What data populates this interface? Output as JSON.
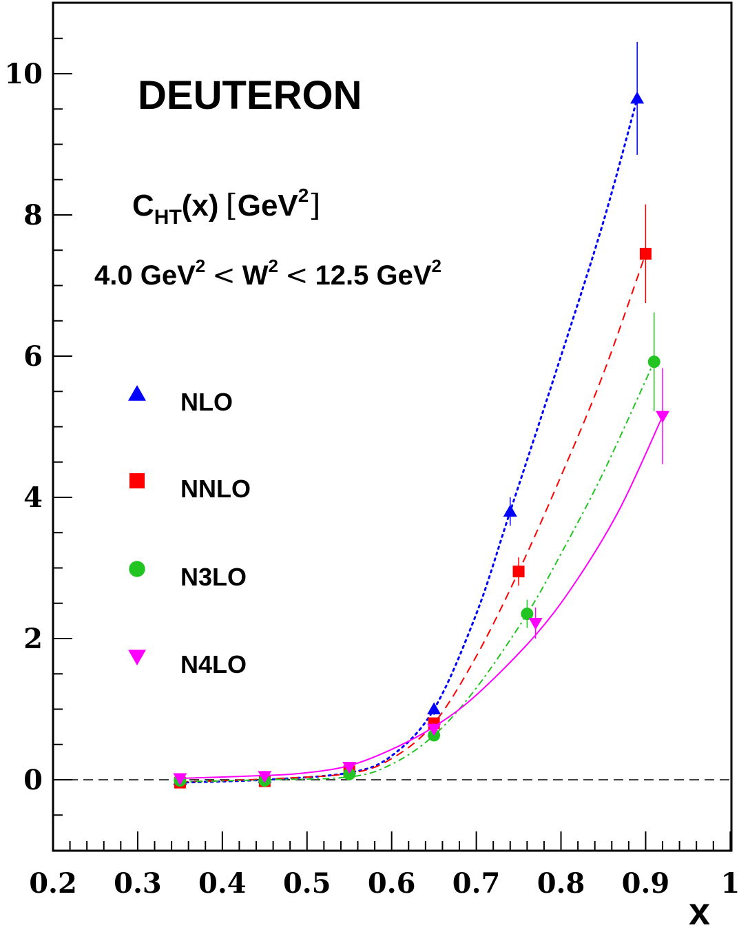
{
  "chart_data": {
    "type": "scatter",
    "title": "DEUTERON",
    "xlabel": "x",
    "ylabel": "",
    "annotations": {
      "quantity_main": "C",
      "quantity_sub": "HT",
      "quantity_arg": "(x)",
      "quantity_unit_main": "GeV",
      "quantity_unit_sup": "2",
      "range_lo_val": "4.0 GeV",
      "range_lo_sup": "2",
      "range_lt1": "<",
      "range_w": "W",
      "range_w_sup": "2",
      "range_lt2": "<",
      "range_hi_val": "12.5 GeV",
      "range_hi_sup": "2"
    },
    "xlim": [
      0.2,
      1.0
    ],
    "ylim": [
      -0.9,
      10.9
    ],
    "x_ticks": [
      0.2,
      0.3,
      0.4,
      0.5,
      0.6,
      0.7,
      0.8,
      0.9,
      1.0
    ],
    "x_tick_labels": [
      "0.2",
      "0.3",
      "0.4",
      "0.5",
      "0.6",
      "0.7",
      "0.8",
      "0.9",
      "1"
    ],
    "y_ticks": [
      0,
      2,
      4,
      6,
      8,
      10
    ],
    "y_tick_labels": [
      "0",
      "2",
      "4",
      "6",
      "8",
      "10"
    ],
    "reference_line_y": 0,
    "legend_position": "left",
    "series": [
      {
        "name": "NLO",
        "color": "#0000ff",
        "marker": "triangle-up",
        "line_style": "dotted",
        "x": [
          0.35,
          0.45,
          0.55,
          0.65,
          0.74,
          0.89
        ],
        "y": [
          0.0,
          0.03,
          0.15,
          1.0,
          3.8,
          9.65
        ],
        "err": [
          0.04,
          0.04,
          0.05,
          0.08,
          0.2,
          0.8
        ],
        "curve": [
          [
            0.35,
            -0.04
          ],
          [
            0.45,
            0.0
          ],
          [
            0.55,
            0.1
          ],
          [
            0.6,
            0.34
          ],
          [
            0.65,
            1.0
          ],
          [
            0.7,
            2.35
          ],
          [
            0.74,
            3.8
          ],
          [
            0.8,
            6.0
          ],
          [
            0.85,
            7.9
          ],
          [
            0.89,
            9.65
          ]
        ]
      },
      {
        "name": "NNLO",
        "color": "#ff0000",
        "marker": "square",
        "line_style": "dashed",
        "x": [
          0.35,
          0.45,
          0.55,
          0.65,
          0.75,
          0.9
        ],
        "y": [
          -0.04,
          -0.02,
          0.12,
          0.8,
          2.95,
          7.45
        ],
        "err": [
          0.04,
          0.04,
          0.05,
          0.08,
          0.2,
          0.7
        ],
        "curve": [
          [
            0.35,
            -0.03
          ],
          [
            0.45,
            0.01
          ],
          [
            0.55,
            0.09
          ],
          [
            0.6,
            0.3
          ],
          [
            0.65,
            0.8
          ],
          [
            0.7,
            1.75
          ],
          [
            0.75,
            2.95
          ],
          [
            0.8,
            4.3
          ],
          [
            0.85,
            5.75
          ],
          [
            0.9,
            7.45
          ]
        ]
      },
      {
        "name": "N3LO",
        "color": "#22c422",
        "marker": "circle",
        "line_style": "dash-dot",
        "x": [
          0.35,
          0.45,
          0.55,
          0.65,
          0.76,
          0.91
        ],
        "y": [
          -0.01,
          -0.01,
          0.08,
          0.63,
          2.35,
          5.92
        ],
        "err": [
          0.04,
          0.04,
          0.05,
          0.08,
          0.2,
          0.7
        ],
        "curve": [
          [
            0.35,
            -0.03
          ],
          [
            0.45,
            0.0
          ],
          [
            0.55,
            0.04
          ],
          [
            0.6,
            0.22
          ],
          [
            0.65,
            0.63
          ],
          [
            0.7,
            1.3
          ],
          [
            0.76,
            2.35
          ],
          [
            0.8,
            3.2
          ],
          [
            0.85,
            4.35
          ],
          [
            0.91,
            5.92
          ]
        ]
      },
      {
        "name": "N4LO",
        "color": "#ff00ff",
        "marker": "triangle-down",
        "line_style": "solid",
        "x": [
          0.35,
          0.45,
          0.55,
          0.65,
          0.77,
          0.92
        ],
        "y": [
          0.02,
          0.05,
          0.18,
          0.72,
          2.22,
          5.15
        ],
        "err": [
          0.04,
          0.04,
          0.05,
          0.08,
          0.22,
          0.68
        ],
        "curve": [
          [
            0.35,
            0.02
          ],
          [
            0.45,
            0.06
          ],
          [
            0.5,
            0.1
          ],
          [
            0.55,
            0.2
          ],
          [
            0.6,
            0.43
          ],
          [
            0.65,
            0.75
          ],
          [
            0.7,
            1.2
          ],
          [
            0.77,
            2.05
          ],
          [
            0.82,
            2.85
          ],
          [
            0.87,
            3.85
          ],
          [
            0.92,
            5.15
          ]
        ]
      }
    ]
  }
}
